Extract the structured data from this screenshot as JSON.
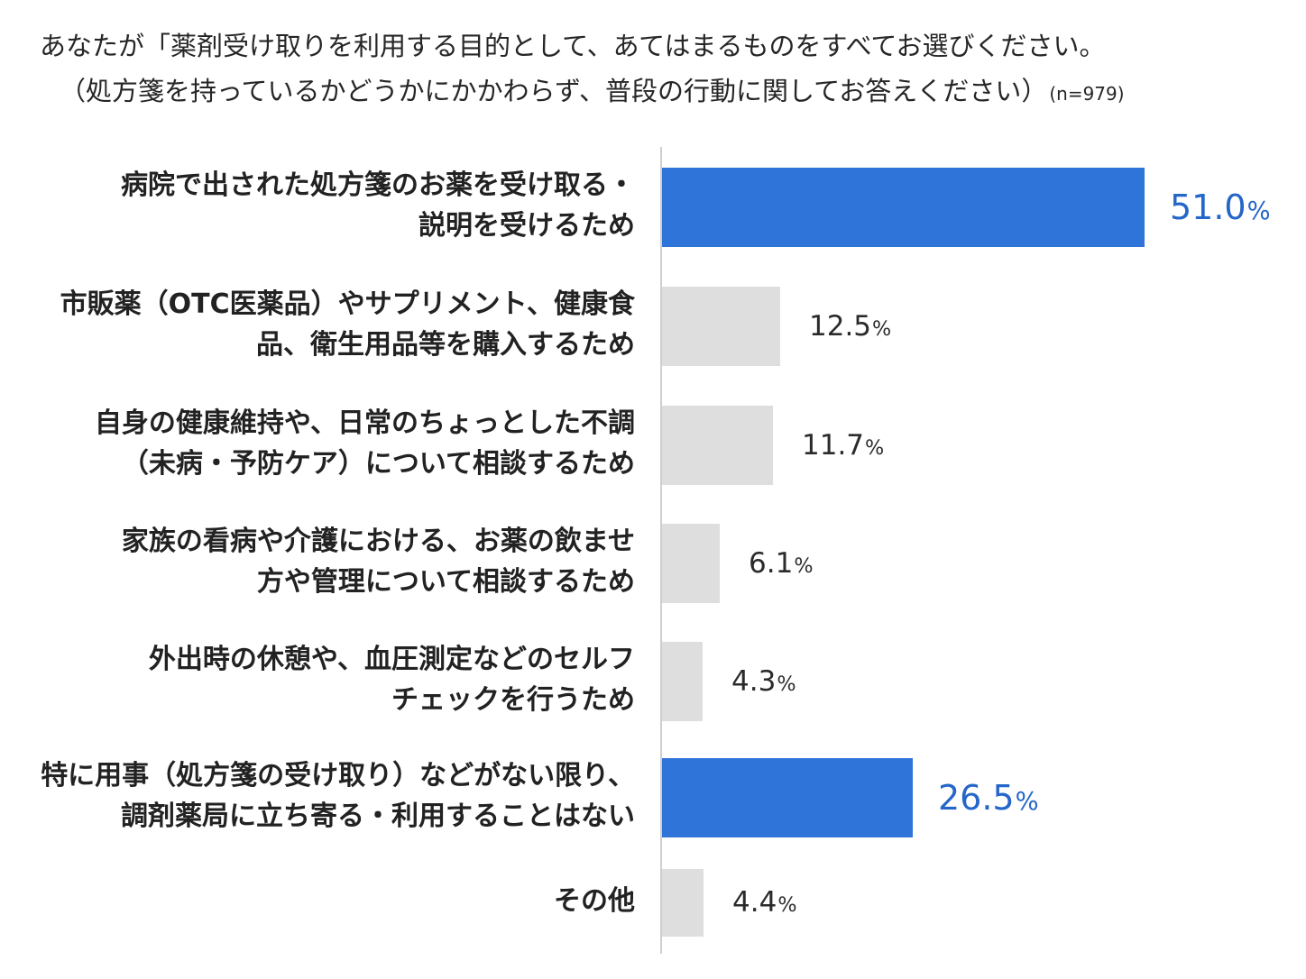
{
  "title": {
    "line1": "あなたが「薬剤受け取りを利用する目的として、あてはまるものをすべてお選びください。",
    "line2": "（処方箋を持っているかどうかにかかわらず、普段の行動に関してお答えください）",
    "n_label": "(n=979)"
  },
  "colors": {
    "highlight": "#2f74d8",
    "highlight_text": "#2466c9",
    "normal": "#dedede",
    "axis": "#cfcfcf"
  },
  "chart_data": {
    "type": "bar",
    "orientation": "horizontal",
    "unit": "%",
    "xlim": [
      0,
      51.0
    ],
    "grid": false,
    "categories": [
      [
        "病院で出された処方箋のお薬を受け取る・",
        "説明を受けるため"
      ],
      [
        "市販薬（OTC医薬品）やサプリメント、健康食",
        "品、衛生用品等を購入するため"
      ],
      [
        "自身の健康維持や、日常のちょっとした不調",
        "（未病・予防ケア）について相談するため"
      ],
      [
        "家族の看病や介護における、お薬の飲ませ",
        "方や管理について相談するため"
      ],
      [
        "外出時の休憩や、血圧測定などのセルフ",
        "チェックを行うため"
      ],
      [
        "特に用事（処方箋の受け取り）などがない限り、",
        "調剤薬局に立ち寄る・利用することはない"
      ],
      [
        "その他"
      ]
    ],
    "values": [
      51.0,
      12.5,
      11.7,
      6.1,
      4.3,
      26.5,
      4.4
    ],
    "value_labels": [
      "51.0",
      "12.5",
      "11.7",
      "6.1",
      "4.3",
      "26.5",
      "4.4"
    ],
    "highlighted": [
      true,
      false,
      false,
      false,
      false,
      true,
      false
    ]
  }
}
